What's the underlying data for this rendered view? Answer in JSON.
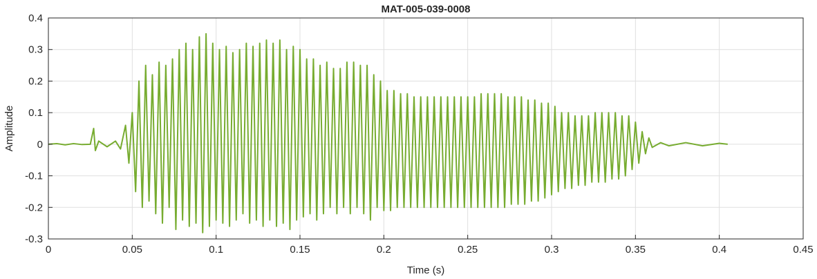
{
  "chart_data": {
    "type": "line",
    "title": "MAT-005-039-0008",
    "xlabel": "Time (s)",
    "ylabel": "Amplitude",
    "xlim": [
      0,
      0.45
    ],
    "ylim": [
      -0.3,
      0.4
    ],
    "xticks": [
      0,
      0.05,
      0.1,
      0.15,
      0.2,
      0.25,
      0.3,
      0.35,
      0.4,
      0.45
    ],
    "yticks": [
      -0.3,
      -0.2,
      -0.1,
      0,
      0.1,
      0.2,
      0.3,
      0.4
    ],
    "grid": true,
    "x": [
      0,
      0.005,
      0.01,
      0.015,
      0.02,
      0.025,
      0.027,
      0.028,
      0.03,
      0.035,
      0.04,
      0.043,
      0.046,
      0.048,
      0.05,
      0.052,
      0.054,
      0.056,
      0.058,
      0.06,
      0.062,
      0.064,
      0.066,
      0.068,
      0.07,
      0.072,
      0.074,
      0.076,
      0.078,
      0.08,
      0.082,
      0.084,
      0.086,
      0.088,
      0.09,
      0.092,
      0.094,
      0.096,
      0.098,
      0.1,
      0.102,
      0.104,
      0.106,
      0.108,
      0.11,
      0.112,
      0.114,
      0.116,
      0.118,
      0.12,
      0.122,
      0.124,
      0.126,
      0.128,
      0.13,
      0.132,
      0.134,
      0.136,
      0.138,
      0.14,
      0.142,
      0.144,
      0.146,
      0.148,
      0.15,
      0.152,
      0.154,
      0.156,
      0.158,
      0.16,
      0.162,
      0.164,
      0.166,
      0.168,
      0.17,
      0.172,
      0.174,
      0.176,
      0.178,
      0.18,
      0.182,
      0.184,
      0.186,
      0.188,
      0.19,
      0.192,
      0.194,
      0.196,
      0.198,
      0.2,
      0.202,
      0.204,
      0.206,
      0.208,
      0.21,
      0.212,
      0.214,
      0.216,
      0.218,
      0.22,
      0.222,
      0.224,
      0.226,
      0.228,
      0.23,
      0.232,
      0.234,
      0.236,
      0.238,
      0.24,
      0.242,
      0.244,
      0.246,
      0.248,
      0.25,
      0.252,
      0.254,
      0.256,
      0.258,
      0.26,
      0.262,
      0.264,
      0.266,
      0.268,
      0.27,
      0.272,
      0.274,
      0.276,
      0.278,
      0.28,
      0.282,
      0.284,
      0.286,
      0.288,
      0.29,
      0.292,
      0.294,
      0.296,
      0.298,
      0.3,
      0.302,
      0.304,
      0.306,
      0.308,
      0.31,
      0.312,
      0.314,
      0.316,
      0.318,
      0.32,
      0.322,
      0.324,
      0.326,
      0.328,
      0.33,
      0.332,
      0.334,
      0.336,
      0.338,
      0.34,
      0.342,
      0.344,
      0.346,
      0.348,
      0.35,
      0.352,
      0.354,
      0.356,
      0.358,
      0.36,
      0.365,
      0.37,
      0.38,
      0.39,
      0.4,
      0.405
    ],
    "series": [
      {
        "color": "#77ac30",
        "values": [
          0,
          0.002,
          -0.002,
          0.002,
          -0.001,
          0,
          0.05,
          -0.02,
          0.01,
          -0.008,
          0.01,
          -0.015,
          0.06,
          -0.06,
          0.1,
          -0.15,
          0.2,
          -0.2,
          0.25,
          -0.18,
          0.22,
          -0.22,
          0.26,
          -0.25,
          0.25,
          -0.2,
          0.27,
          -0.27,
          0.3,
          -0.24,
          0.32,
          -0.26,
          0.3,
          -0.25,
          0.34,
          -0.28,
          0.35,
          -0.26,
          0.32,
          -0.24,
          0.3,
          -0.25,
          0.31,
          -0.26,
          0.29,
          -0.24,
          0.3,
          -0.22,
          0.32,
          -0.25,
          0.31,
          -0.24,
          0.32,
          -0.26,
          0.33,
          -0.24,
          0.32,
          -0.26,
          0.33,
          -0.25,
          0.3,
          -0.27,
          0.31,
          -0.24,
          0.3,
          -0.23,
          0.27,
          -0.22,
          0.27,
          -0.24,
          0.25,
          -0.22,
          0.26,
          -0.2,
          0.24,
          -0.22,
          0.24,
          -0.2,
          0.26,
          -0.22,
          0.26,
          -0.2,
          0.25,
          -0.22,
          0.25,
          -0.24,
          0.22,
          -0.2,
          0.2,
          -0.21,
          0.17,
          -0.21,
          0.17,
          -0.2,
          0.16,
          -0.2,
          0.16,
          -0.2,
          0.15,
          -0.2,
          0.15,
          -0.2,
          0.15,
          -0.2,
          0.15,
          -0.2,
          0.15,
          -0.2,
          0.15,
          -0.2,
          0.15,
          -0.2,
          0.15,
          -0.2,
          0.15,
          -0.2,
          0.15,
          -0.2,
          0.16,
          -0.2,
          0.16,
          -0.2,
          0.16,
          -0.2,
          0.16,
          -0.2,
          0.15,
          -0.19,
          0.15,
          -0.19,
          0.15,
          -0.19,
          0.14,
          -0.18,
          0.14,
          -0.18,
          0.13,
          -0.17,
          0.13,
          -0.16,
          0.12,
          -0.15,
          0.1,
          -0.14,
          0.1,
          -0.14,
          0.09,
          -0.13,
          0.09,
          -0.13,
          0.09,
          -0.12,
          0.1,
          -0.12,
          0.1,
          -0.12,
          0.1,
          -0.11,
          0.1,
          -0.11,
          0.09,
          -0.1,
          0.09,
          -0.08,
          0.07,
          -0.06,
          0.04,
          -0.03,
          0.02,
          -0.01,
          0.005,
          -0.005,
          0.005,
          -0.005,
          0.003,
          0
        ]
      }
    ]
  }
}
